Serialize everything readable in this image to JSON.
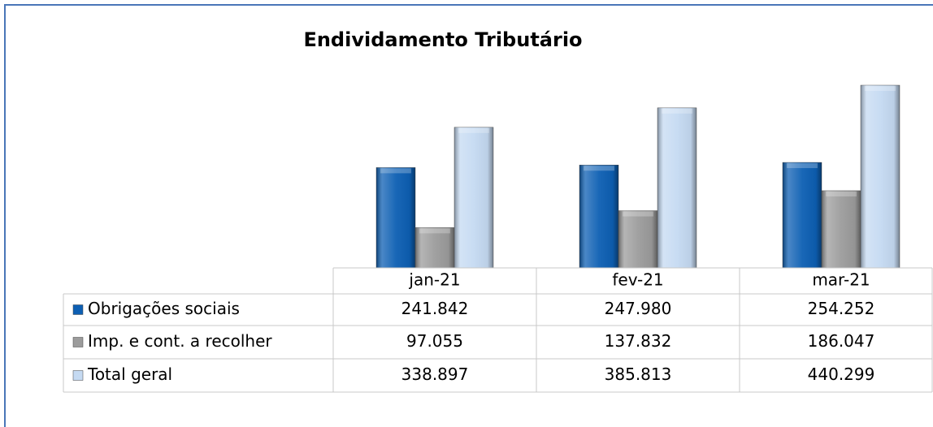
{
  "chart_data": {
    "type": "bar",
    "title": "Endividamento Tributário",
    "categories": [
      "jan-21",
      "fev-21",
      "mar-21"
    ],
    "series": [
      {
        "name": "Obrigações sociais",
        "color": "#0d5fb3",
        "values": [
          241842,
          247980,
          254252
        ],
        "value_labels": [
          "241.842",
          "247.980",
          "254.252"
        ]
      },
      {
        "name": "Imp. e cont. a recolher",
        "color": "#9c9c9c",
        "values": [
          97055,
          137832,
          186047
        ],
        "value_labels": [
          "97.055",
          "137.832",
          "186.047"
        ]
      },
      {
        "name": "Total geral",
        "color": "#c5daf2",
        "values": [
          338897,
          385813,
          440299
        ],
        "value_labels": [
          "338.897",
          "385.813",
          "440.299"
        ]
      }
    ]
  }
}
